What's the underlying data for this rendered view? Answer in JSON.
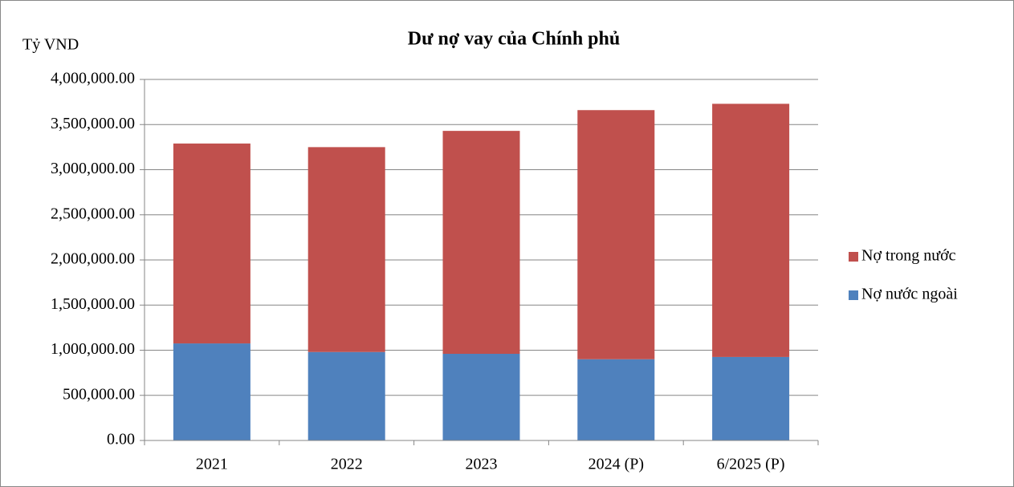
{
  "chart_data": {
    "type": "stacked_bar",
    "title": "Dư nợ vay của Chính phủ",
    "y_label": "Tỷ VND",
    "categories": [
      "2021",
      "2022",
      "2023",
      "2024 (P)",
      "6/2025 (P)"
    ],
    "series": [
      {
        "name": "Nợ nước ngoài",
        "color": "#4f81bd",
        "values": [
          1075000,
          980000,
          960000,
          900000,
          925000
        ]
      },
      {
        "name": "Nợ trong nước",
        "color": "#c0504d",
        "values": [
          2215000,
          2270000,
          2470000,
          2760000,
          2805000
        ]
      }
    ],
    "ylim": [
      0,
      4000000
    ],
    "yticks": [
      {
        "value": 0,
        "label": "0.00"
      },
      {
        "value": 500000,
        "label": "500,000.00"
      },
      {
        "value": 1000000,
        "label": "1,000,000.00"
      },
      {
        "value": 1500000,
        "label": "1,500,000.00"
      },
      {
        "value": 2000000,
        "label": "2,000,000.00"
      },
      {
        "value": 2500000,
        "label": "2,500,000.00"
      },
      {
        "value": 3000000,
        "label": "3,000,000.00"
      },
      {
        "value": 3500000,
        "label": "3,500,000.00"
      },
      {
        "value": 4000000,
        "label": "4,000,000.00"
      }
    ],
    "grid": true,
    "legend": "right"
  }
}
